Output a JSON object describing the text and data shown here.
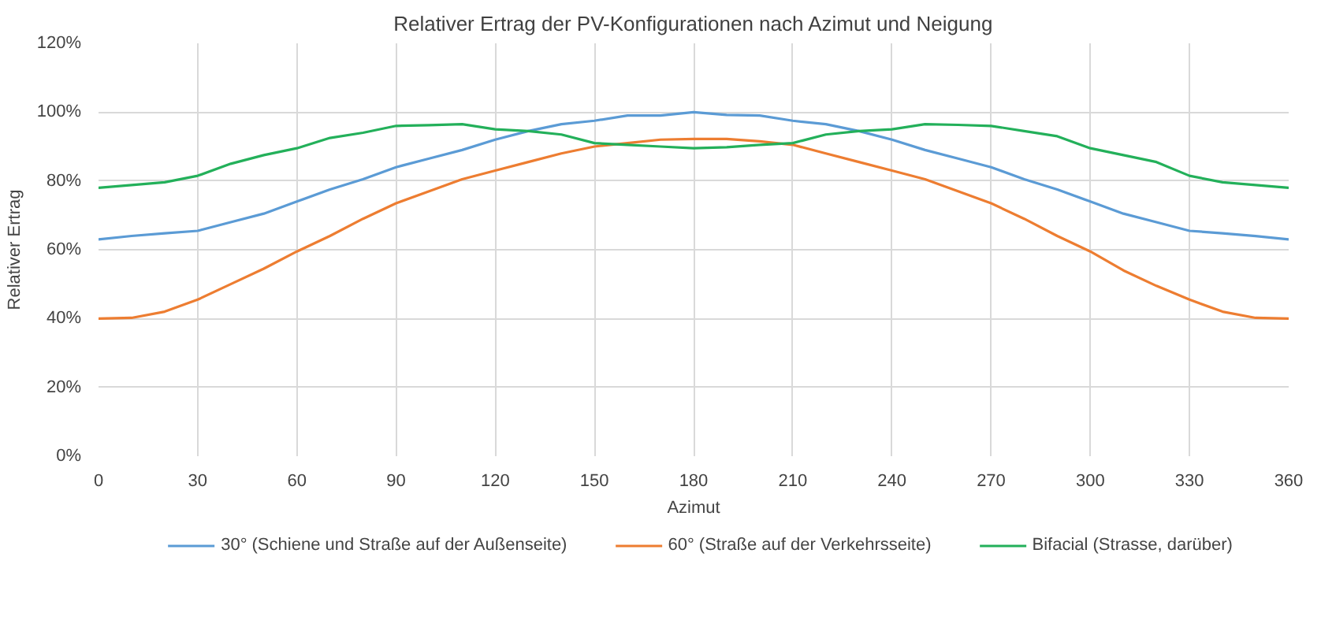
{
  "chart_data": {
    "type": "line",
    "title": "Relativer Ertrag der PV-Konfigurationen nach Azimut und Neigung",
    "xlabel": "Azimut",
    "ylabel": "Relativer Ertrag",
    "x": [
      0,
      10,
      20,
      30,
      40,
      50,
      60,
      70,
      80,
      90,
      100,
      110,
      120,
      130,
      140,
      150,
      160,
      170,
      180,
      190,
      200,
      210,
      220,
      230,
      240,
      250,
      260,
      270,
      280,
      290,
      300,
      310,
      320,
      330,
      340,
      350,
      360
    ],
    "series": [
      {
        "name": "30° (Schiene und Straße auf der Außenseite)",
        "color": "#5b9bd5",
        "values": [
          63,
          64,
          64.8,
          65.5,
          68,
          70.5,
          74,
          77.5,
          80.5,
          84,
          86.5,
          89,
          92,
          94.5,
          96.5,
          97.5,
          99,
          99,
          100,
          99.2,
          99,
          97.5,
          96.5,
          94.5,
          92,
          89,
          86.5,
          84,
          80.5,
          77.5,
          74,
          70.5,
          68,
          65.5,
          64.8,
          64,
          63
        ]
      },
      {
        "name": "60° (Straße auf der Verkehrsseite)",
        "color": "#ed7d31",
        "values": [
          40,
          40.2,
          42,
          45.5,
          50,
          54.5,
          59.5,
          64,
          69,
          73.5,
          77,
          80.5,
          83,
          85.5,
          88,
          90,
          91,
          92,
          92.2,
          92.2,
          91.5,
          90.5,
          88,
          85.5,
          83,
          80.5,
          77,
          73.5,
          69,
          64,
          59.5,
          54,
          49.5,
          45.5,
          42,
          40.2,
          40
        ]
      },
      {
        "name": "Bifacial (Strasse, darüber)",
        "color": "#23b05a",
        "values": [
          78,
          78.8,
          79.6,
          81.5,
          85,
          87.5,
          89.5,
          92.5,
          94,
          96,
          96.2,
          96.5,
          95,
          94.5,
          93.5,
          91,
          90.5,
          90,
          89.5,
          89.8,
          90.5,
          91,
          93.5,
          94.5,
          95,
          96.5,
          96.3,
          96,
          94.5,
          93,
          89.5,
          87.5,
          85.5,
          81.5,
          79.6,
          78.8,
          78
        ]
      }
    ],
    "xlim": [
      0,
      360
    ],
    "xticks": [
      0,
      30,
      60,
      90,
      120,
      150,
      180,
      210,
      240,
      270,
      300,
      330,
      360
    ],
    "ylim": [
      0,
      120
    ],
    "yticks": [
      {
        "value": 0,
        "label": "0%"
      },
      {
        "value": 20,
        "label": "20%"
      },
      {
        "value": 40,
        "label": "40%"
      },
      {
        "value": 60,
        "label": "60%"
      },
      {
        "value": 80,
        "label": "80%"
      },
      {
        "value": 100,
        "label": "100%"
      },
      {
        "value": 120,
        "label": "120%"
      }
    ],
    "grid": true,
    "legend": "bottom",
    "marker": "none",
    "line_style": "solid"
  }
}
